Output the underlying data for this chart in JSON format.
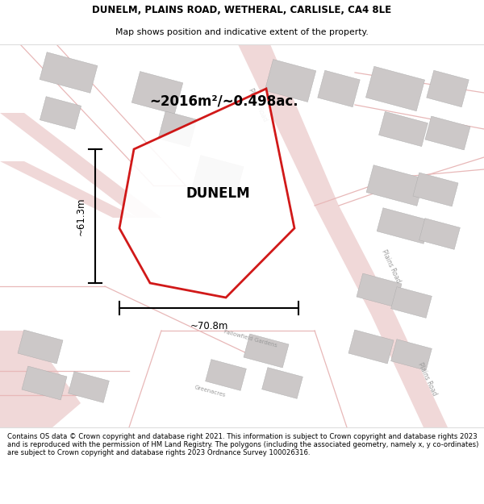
{
  "title_line1": "DUNELM, PLAINS ROAD, WETHERAL, CARLISLE, CA4 8LE",
  "title_line2": "Map shows position and indicative extent of the property.",
  "area_label": "~2016m²/~0.498ac.",
  "property_label": "DUNELM",
  "dim_height": "~61.3m",
  "dim_width": "~70.8m",
  "footer_text": "Contains OS data © Crown copyright and database right 2021. This information is subject to Crown copyright and database rights 2023 and is reproduced with the permission of HM Land Registry. The polygons (including the associated geometry, namely x, y co-ordinates) are subject to Crown copyright and database rights 2023 Ordnance Survey 100026316.",
  "bg_color": "#faf7f7",
  "map_bg": "#f8f5f5",
  "road_color_fill": "#f0d8d8",
  "road_color_line": "#e8b8b8",
  "building_color": "#ccc8c8",
  "property_outline_color": "#cc0000",
  "text_color": "#000000",
  "road_text_color": "#999999",
  "white": "#ffffff"
}
